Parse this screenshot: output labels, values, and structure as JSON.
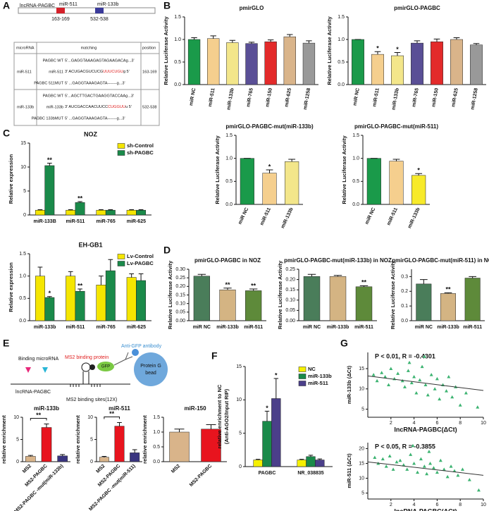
{
  "panel_labels": [
    "A",
    "B",
    "C",
    "D",
    "E",
    "F",
    "G"
  ],
  "panel_a": {
    "gene": "lncRNA-PAGBC",
    "sites": [
      {
        "name": "miR-511",
        "position": "163-169"
      },
      {
        "name": "miR-133b",
        "position": "532-538"
      }
    ],
    "table": {
      "header": [
        "microRNA",
        "matching",
        "position"
      ],
      "rows": [
        {
          "microrna": "miR-511",
          "position": "163-169",
          "lines": [
            {
              "label": "PAGBC WT",
              "seq": [
                "5'...GAGGTAAAGAGTAGAAGACAg...3'"
              ]
            },
            {
              "label": "miR-511",
              "seq": [
                "3'   ACUGACGUCUCG",
                "UUUCUGU",
                "g   5'"
              ]
            },
            {
              "label": "PAGBC 511MUT",
              "seq": [
                "5' ...GAGGTAAAGAGTA-------g...3'"
              ]
            }
          ]
        },
        {
          "microrna": "miR-133b",
          "position": "532-538",
          "lines": [
            {
              "label": "PAGBC WT",
              "seq": [
                "5'...AGCTTGACTGAAGGTACCAAg...3'"
              ]
            },
            {
              "label": "miR-133b",
              "seq": [
                "3'   AUCGACCAACUUCC",
                "CUGGUU",
                "u   5'"
              ]
            },
            {
              "label": "PAGBC 133bMUT",
              "seq": [
                "5' ...GAGGTAAAGAGTA-------g...3'"
              ]
            }
          ]
        }
      ]
    }
  },
  "panel_e": {
    "binding": "Binding microRNA",
    "ms2": "MS2 binding protein",
    "antibody": "Anti-GFP antibody",
    "gfp": "GFP",
    "bead": [
      "Protein G",
      "bead"
    ],
    "gene": "lncRNA-PAGBC",
    "sites": "MS2 binding sites(12X)"
  },
  "chart_data": [
    {
      "type": "bar",
      "title": "pmirGLO",
      "ylabel": "Relative  Luciferase Activity",
      "categories": [
        "miR NC",
        "miR-511",
        "miR-133b",
        "miR-765",
        "miR-150",
        "miR-625",
        "miR-1258"
      ],
      "values": [
        1.0,
        1.02,
        0.93,
        0.91,
        0.95,
        1.06,
        0.92
      ],
      "errors": [
        0.04,
        0.06,
        0.05,
        0.03,
        0.04,
        0.05,
        0.05
      ],
      "colors": [
        "#1a9a4a",
        "#f5cf8e",
        "#f3e68a",
        "#5a4f96",
        "#e32a2a",
        "#d9b48a",
        "#999999"
      ],
      "ylim": [
        0,
        1.5
      ],
      "yticks": [
        {
          "value": 0,
          "label": "0.0"
        },
        0.5,
        {
          "value": 1,
          "label": "1.0"
        },
        1.5
      ]
    },
    {
      "type": "bar",
      "title": "pmirGLO-PAGBC",
      "ylabel": "Relative  Luciferase Activity",
      "categories": [
        "miR NC",
        "miR-511",
        "miR-133b",
        "miR-765",
        "miR-150",
        "miR-625",
        "miR-1258"
      ],
      "values": [
        1.0,
        0.67,
        0.64,
        0.92,
        0.95,
        1.0,
        0.88
      ],
      "errors": [
        0,
        0.06,
        0.07,
        0.05,
        0.06,
        0.04,
        0.03
      ],
      "significance": [
        null,
        "*",
        "*",
        null,
        null,
        null,
        null
      ],
      "colors": [
        "#1a9a4a",
        "#f5cf8e",
        "#f3e68a",
        "#5a4f96",
        "#e32a2a",
        "#d9b48a",
        "#999999"
      ],
      "ylim": [
        0,
        1.5
      ],
      "yticks": [
        {
          "value": 0,
          "label": "0.0"
        },
        0.5,
        {
          "value": 1,
          "label": "1.0"
        },
        1.5
      ]
    },
    {
      "type": "bar",
      "title": "pmirGLO-PAGBC-mut(miR-133b)",
      "ylabel": "Relative  Luciferase Activity",
      "categories": [
        "miR NC",
        "miR-511",
        "miR-133b"
      ],
      "values": [
        1.0,
        0.68,
        0.93
      ],
      "errors": [
        0,
        0.07,
        0.05
      ],
      "significance": [
        null,
        "*",
        null
      ],
      "colors": [
        "#1a9a4a",
        "#f5cf8e",
        "#f3e68a"
      ],
      "ylim": [
        0,
        1.5
      ],
      "yticks": [
        {
          "value": 0,
          "label": "0.0"
        },
        0.5,
        {
          "value": 1,
          "label": "1.0"
        },
        1.5
      ]
    },
    {
      "type": "bar",
      "title": "pmirGLO-PAGBC-mut(miR-511)",
      "ylabel": "Relative  Luciferase Activity",
      "categories": [
        "miR NC",
        "miR-511",
        "miR-133b"
      ],
      "values": [
        1.0,
        0.94,
        0.63
      ],
      "errors": [
        0,
        0.04,
        0.04
      ],
      "significance": [
        null,
        null,
        "*"
      ],
      "colors": [
        "#1a9a4a",
        "#f5cf8e",
        "#f7ea2a"
      ],
      "ylim": [
        0,
        1.5
      ],
      "yticks": [
        {
          "value": 0,
          "label": "0.0"
        },
        0.5,
        {
          "value": 1,
          "label": "1.0"
        },
        1.5
      ]
    },
    {
      "type": "bar",
      "title": "NOZ",
      "ylabel": "Relative expression",
      "categories": [
        "miR-133B",
        "miR-511",
        "miR-765",
        "miR-625"
      ],
      "legend": "upper right",
      "series": [
        {
          "name": "sh-Control",
          "color": "#f5e600",
          "values": [
            1,
            1,
            1,
            1
          ],
          "errors": [
            0.1,
            0.1,
            0.1,
            0.1
          ]
        },
        {
          "name": "sh-PAGBC",
          "color": "#1a8a4a",
          "values": [
            10.3,
            2.6,
            1.0,
            1.0
          ],
          "errors": [
            0.5,
            0.2,
            0.1,
            0.1
          ],
          "significance": [
            "**",
            "**",
            null,
            null
          ]
        }
      ],
      "ylim": [
        0,
        15
      ],
      "yticks": [
        0,
        5,
        10,
        15
      ]
    },
    {
      "type": "bar",
      "title": "EH-GB1",
      "ylabel": "Relative expression",
      "categories": [
        "miR-133b",
        "miR-511",
        "miR-765",
        "miR-625"
      ],
      "legend": "upper right",
      "series": [
        {
          "name": "Lv-Control",
          "color": "#f5e600",
          "values": [
            1.0,
            1.0,
            0.8,
            0.97
          ],
          "errors": [
            0.2,
            0.1,
            0.2,
            0.08
          ]
        },
        {
          "name": "Lv-PAGBC",
          "color": "#1a8a4a",
          "values": [
            0.52,
            0.66,
            1.12,
            0.9
          ],
          "errors": [
            0.02,
            0.05,
            0.25,
            0.15
          ],
          "significance": [
            "*",
            "**",
            null,
            null
          ]
        }
      ],
      "ylim": [
        0,
        1.5
      ],
      "yticks": [
        {
          "value": 0,
          "label": "0.0"
        },
        0.5,
        {
          "value": 1,
          "label": "1.0"
        },
        1.5
      ]
    },
    {
      "type": "bar",
      "title": "pmirGLO-PAGBC in NOZ",
      "ylabel": "Relative  Luciferase Activity",
      "categories": [
        "miR NC",
        "miR-133b",
        "miR-511"
      ],
      "values": [
        0.26,
        0.18,
        0.175
      ],
      "errors": [
        0.01,
        0.01,
        0.01
      ],
      "significance": [
        null,
        "**",
        "**"
      ],
      "colors": [
        "#4a7d5a",
        "#d4b483",
        "#5e8a3a"
      ],
      "ylim": [
        0,
        0.3
      ],
      "yticks": [
        {
          "value": 0,
          "label": "0.00"
        },
        0.05,
        {
          "value": 0.1,
          "label": "0.10"
        },
        0.15,
        {
          "value": 0.2,
          "label": "0.20"
        },
        0.25,
        {
          "value": 0.3,
          "label": "0.30"
        }
      ]
    },
    {
      "type": "bar",
      "title": "pmirGLO-PAGBC-mut(miR-133b) in NOZ",
      "ylabel": "Relative Luciferase Activity",
      "categories": [
        "miR NC",
        "miR-133b",
        "miR-511"
      ],
      "values": [
        0.215,
        0.215,
        0.165
      ],
      "errors": [
        0.01,
        0.005,
        0.005
      ],
      "significance": [
        null,
        null,
        "**"
      ],
      "colors": [
        "#4a7d5a",
        "#d4b483",
        "#5e8a3a"
      ],
      "ylim": [
        0,
        0.25
      ],
      "yticks": [
        {
          "value": 0,
          "label": "0.00"
        },
        0.05,
        {
          "value": 0.1,
          "label": "0.10"
        },
        0.15,
        {
          "value": 0.2,
          "label": "0.20"
        },
        0.25
      ]
    },
    {
      "type": "bar",
      "title": "pmirGLO-PAGBC-mut(miR-511) in NOZ",
      "ylabel": "Relative Luciferase Activity",
      "categories": [
        "miR NC",
        "miR-133b",
        "miR-511"
      ],
      "values": [
        0.25,
        0.185,
        0.29
      ],
      "errors": [
        0.03,
        0.005,
        0.01
      ],
      "significance": [
        null,
        "**",
        null
      ],
      "colors": [
        "#4a7d5a",
        "#d4b483",
        "#5e8a3a"
      ],
      "ylim": [
        0,
        0.35
      ],
      "yticks": [
        {
          "value": 0,
          "label": "0.0"
        },
        0.1,
        0.2,
        0.3
      ]
    },
    {
      "type": "bar",
      "title": "miR-133b",
      "ylabel": "relative enrichment",
      "categories": [
        "MS2",
        "MS2-PAGBC",
        "MS2-PAGBC -mut(miR-133b)"
      ],
      "bracket": true,
      "values": [
        1.2,
        7.7,
        1.3
      ],
      "errors": [
        0.2,
        0.8,
        0.3
      ],
      "significance": [
        null,
        "**",
        null
      ],
      "colors": [
        "#d9b48a",
        "#e8141e",
        "#3a3580"
      ],
      "ylim": [
        0,
        10
      ],
      "yticks": [
        0,
        5,
        10
      ]
    },
    {
      "type": "bar",
      "title": "miR-511",
      "ylabel": "relative enrichment",
      "categories": [
        "MS2",
        "MS2-PAGBC",
        "MS2-PAGBC -mut(miR-511)"
      ],
      "bracket": true,
      "values": [
        1.0,
        8.0,
        2.0
      ],
      "errors": [
        0.2,
        0.8,
        0.7
      ],
      "significance": [
        null,
        "**",
        null
      ],
      "colors": [
        "#d9b48a",
        "#e8141e",
        "#3a3580"
      ],
      "ylim": [
        0,
        10
      ],
      "yticks": [
        0,
        5,
        10
      ]
    },
    {
      "type": "bar",
      "title": "miR-150",
      "ylabel": "relative enrichment",
      "categories": [
        "MS2",
        "MS2-PAGBC"
      ],
      "values": [
        1.0,
        1.1
      ],
      "errors": [
        0.1,
        0.15
      ],
      "colors": [
        "#d9b48a",
        "#e8141e"
      ],
      "ylim": [
        0,
        1.5
      ],
      "yticks": [
        {
          "value": 0,
          "label": "0.0"
        },
        0.5,
        {
          "value": 1,
          "label": "1.0"
        },
        1.5
      ]
    },
    {
      "type": "bar",
      "ylabel": [
        "relative enrichment to NC",
        "(Anti-AGO2/Input RIP)"
      ],
      "categories": [
        "PAGBC",
        "NR_038835"
      ],
      "legend": "upper right",
      "series": [
        {
          "name": "NC",
          "color": "#f5f000",
          "values": [
            1.0,
            1.0
          ],
          "errors": [
            0.1,
            0.1
          ]
        },
        {
          "name": "miR-133b",
          "color": "#1a8a4a",
          "values": [
            6.8,
            1.5
          ],
          "errors": [
            1.5,
            0.2
          ],
          "significance": [
            "*",
            null
          ]
        },
        {
          "name": "miR-511",
          "color": "#4b3f8a",
          "values": [
            10.2,
            1.0
          ],
          "errors": [
            3,
            0.15
          ],
          "significance": [
            "*",
            null
          ]
        }
      ],
      "ylim": [
        0,
        15
      ],
      "yticks": [
        0,
        5,
        10,
        15
      ]
    },
    {
      "type": "scatter",
      "title": "P < 0.01, R = -0.4301",
      "xlabel": "lncRNA-PAGBC(ΔCt)",
      "ylabel": "miR-133b (ΔCt)",
      "color": "#3cb371",
      "x": [
        0.5,
        0.8,
        1.2,
        1.5,
        1.8,
        2,
        2.3,
        2.6,
        3,
        3.2,
        3.5,
        3.8,
        4,
        4.2,
        4.5,
        4.7,
        5,
        5.2,
        5.5,
        5.8,
        6,
        6.2,
        6.5,
        6.8,
        7,
        7.3,
        7.6,
        8,
        8.5,
        9.5,
        4.9,
        3.6
      ],
      "y": [
        13.5,
        12,
        14,
        13,
        11,
        15,
        12.5,
        13.8,
        12,
        10.5,
        14.5,
        11.5,
        13,
        9,
        12.2,
        15.5,
        11,
        8.5,
        13.5,
        10,
        12.5,
        7.5,
        11,
        9.5,
        13,
        8,
        10.5,
        6,
        9,
        5.5,
        18,
        16.5
      ],
      "trend": {
        "x": [
          0,
          10
        ],
        "y": [
          13.2,
          9.6
        ]
      },
      "xlim": [
        0,
        10
      ],
      "xticks": [
        2,
        4,
        6,
        8,
        10
      ],
      "ylim": [
        3,
        19
      ],
      "yticks": [
        5,
        10,
        15
      ]
    },
    {
      "type": "scatter",
      "title": "P < 0.05, R = -0.3855",
      "xlabel": "lncRNA-PAGBC(ΔCt)",
      "ylabel": "miR-511 (ΔCt)",
      "color": "#3cb371",
      "x": [
        0.6,
        0.9,
        1.3,
        1.6,
        1.9,
        2.2,
        2.5,
        2.8,
        3.1,
        3.4,
        3.7,
        4,
        4.3,
        4.6,
        4.9,
        5.1,
        5.4,
        5.7,
        6,
        6.3,
        6.6,
        6.9,
        7.2,
        7.5,
        7.8,
        8.2,
        8.8,
        9.6,
        3.9,
        5.3
      ],
      "y": [
        17,
        15,
        16.5,
        14,
        17.5,
        13,
        15.5,
        16,
        14.5,
        13,
        18,
        15,
        12,
        16.5,
        14,
        11.5,
        15,
        13.5,
        12,
        16,
        13,
        10.5,
        14,
        12.5,
        11,
        13,
        9.5,
        6,
        21,
        19
      ],
      "trend": {
        "x": [
          0,
          10
        ],
        "y": [
          15.5,
          11
        ]
      },
      "xlim": [
        0,
        10
      ],
      "xticks": [
        2,
        4,
        6,
        8,
        10
      ],
      "ylim": [
        3,
        22
      ],
      "yticks": [
        5,
        10,
        15,
        20
      ]
    }
  ]
}
